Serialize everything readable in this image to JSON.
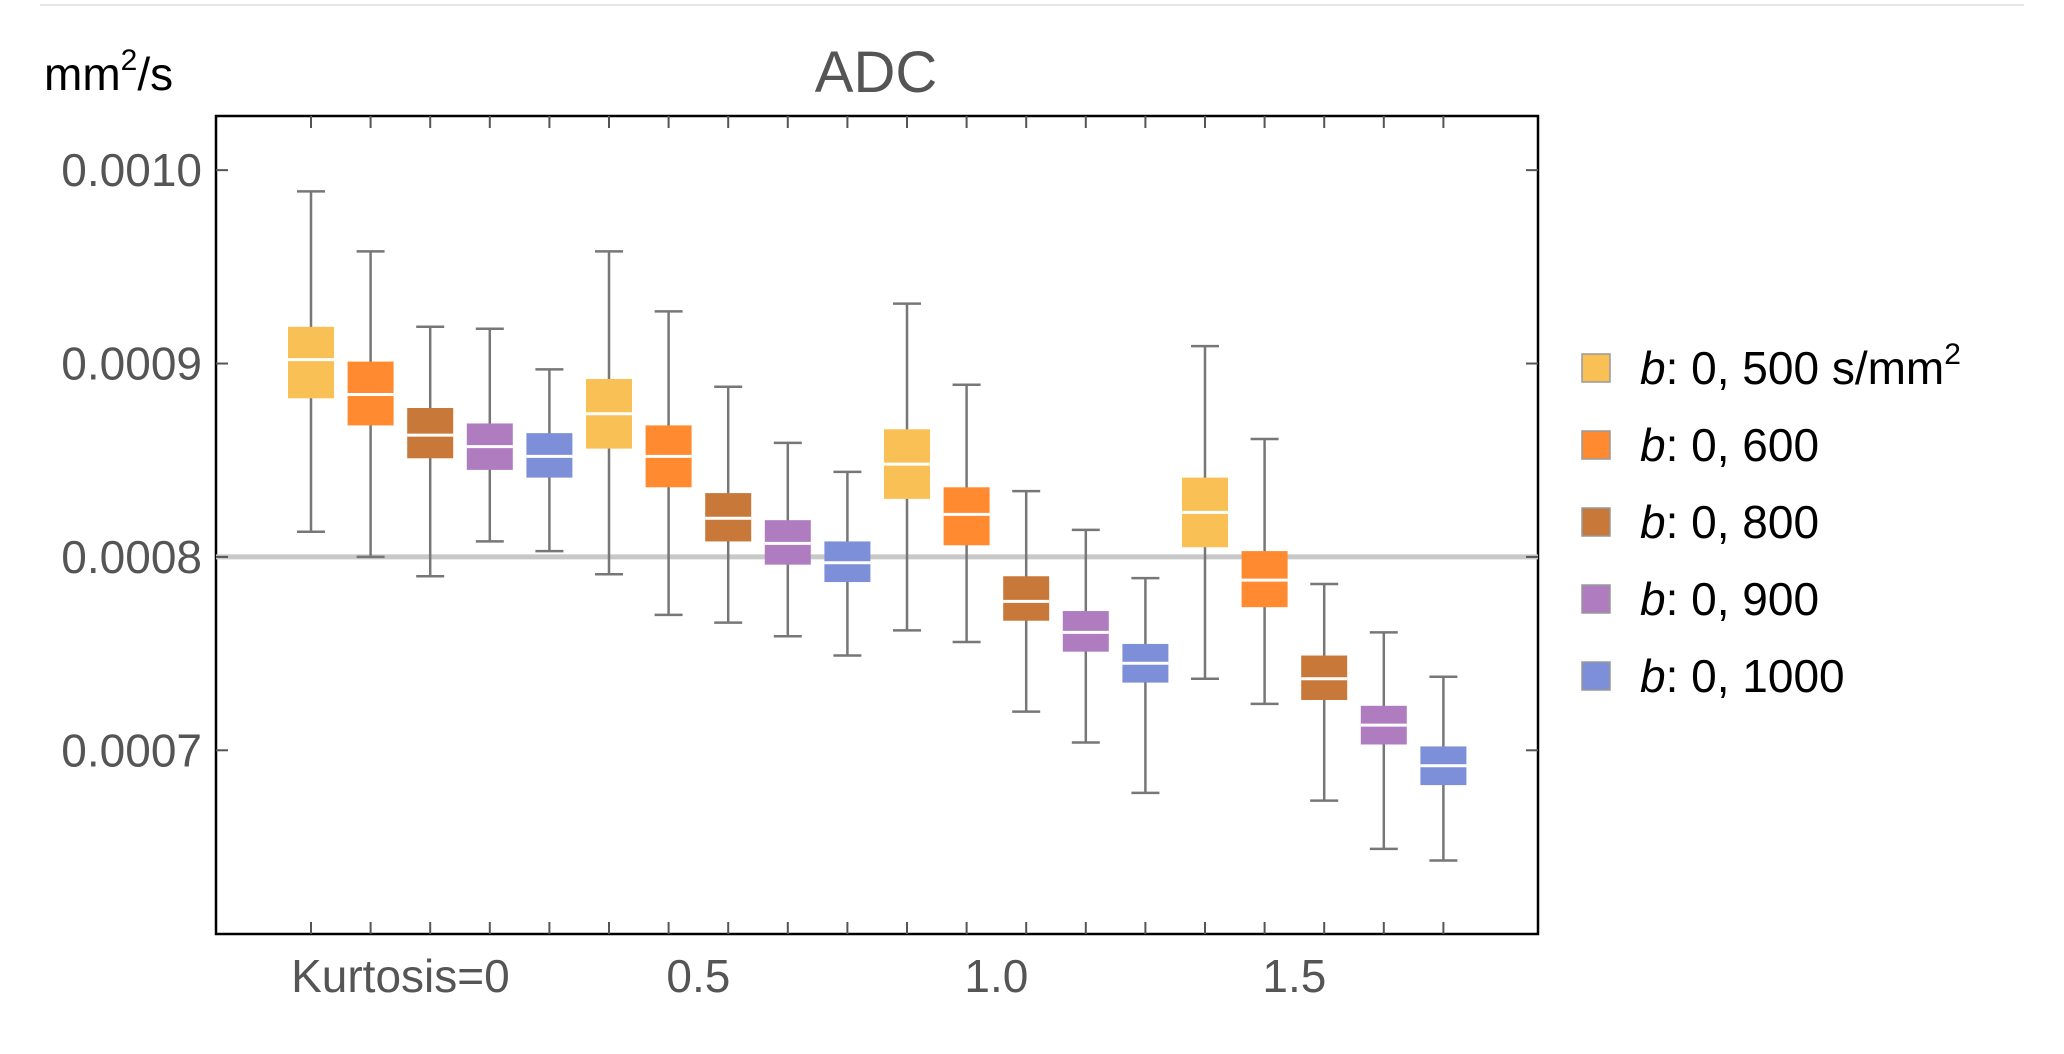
{
  "chart_data": {
    "type": "box",
    "title": "ADC",
    "unit_label": {
      "base": "mm",
      "sup": "2",
      "rest": "/s"
    },
    "ylim": [
      0.000605,
      0.001028
    ],
    "yticks": [
      {
        "value": 0.0007,
        "label": "0.0007"
      },
      {
        "value": 0.0008,
        "label": "0.0008"
      },
      {
        "value": 0.0009,
        "label": "0.0009"
      },
      {
        "value": 0.001,
        "label": "0.0010"
      }
    ],
    "reference_line": 0.0008,
    "groups": [
      {
        "label": "Kurtosis=0",
        "kurtosis": 0
      },
      {
        "label": "0.5",
        "kurtosis": 0.5
      },
      {
        "label": "1.0",
        "kurtosis": 1.0
      },
      {
        "label": "1.5",
        "kurtosis": 1.5
      }
    ],
    "series": [
      {
        "name": "b: 0, 500 s/mm2",
        "legend": {
          "b": "b",
          "rest": ": 0, 500 s/mm",
          "sup": "2"
        },
        "color": "#F9C056",
        "boxes": [
          {
            "min": 0.000813,
            "q1": 0.000882,
            "median": 0.000902,
            "q3": 0.000919,
            "max": 0.000989
          },
          {
            "min": 0.000791,
            "q1": 0.000856,
            "median": 0.000874,
            "q3": 0.000892,
            "max": 0.000958
          },
          {
            "min": 0.000762,
            "q1": 0.00083,
            "median": 0.000848,
            "q3": 0.000866,
            "max": 0.000931
          },
          {
            "min": 0.000737,
            "q1": 0.000805,
            "median": 0.000823,
            "q3": 0.000841,
            "max": 0.000909
          }
        ]
      },
      {
        "name": "b: 0, 600",
        "legend": {
          "b": "b",
          "rest": ": 0, 600",
          "sup": ""
        },
        "color": "#FF8A30",
        "boxes": [
          {
            "min": 0.0008,
            "q1": 0.000868,
            "median": 0.000884,
            "q3": 0.000901,
            "max": 0.000958
          },
          {
            "min": 0.00077,
            "q1": 0.000836,
            "median": 0.000852,
            "q3": 0.000868,
            "max": 0.000927
          },
          {
            "min": 0.000756,
            "q1": 0.000806,
            "median": 0.000822,
            "q3": 0.000836,
            "max": 0.000889
          },
          {
            "min": 0.000724,
            "q1": 0.000774,
            "median": 0.000788,
            "q3": 0.000803,
            "max": 0.000861
          }
        ]
      },
      {
        "name": "b: 0, 800",
        "legend": {
          "b": "b",
          "rest": ": 0, 800",
          "sup": ""
        },
        "color": "#C8793A",
        "boxes": [
          {
            "min": 0.00079,
            "q1": 0.000851,
            "median": 0.000863,
            "q3": 0.000877,
            "max": 0.000919
          },
          {
            "min": 0.000766,
            "q1": 0.000808,
            "median": 0.00082,
            "q3": 0.000833,
            "max": 0.000888
          },
          {
            "min": 0.00072,
            "q1": 0.000767,
            "median": 0.000777,
            "q3": 0.00079,
            "max": 0.000834
          },
          {
            "min": 0.000674,
            "q1": 0.000726,
            "median": 0.000737,
            "q3": 0.000749,
            "max": 0.000786
          }
        ]
      },
      {
        "name": "b: 0, 900",
        "legend": {
          "b": "b",
          "rest": ": 0, 900",
          "sup": ""
        },
        "color": "#B07CC0",
        "boxes": [
          {
            "min": 0.000808,
            "q1": 0.000845,
            "median": 0.000857,
            "q3": 0.000869,
            "max": 0.000918
          },
          {
            "min": 0.000759,
            "q1": 0.000796,
            "median": 0.000807,
            "q3": 0.000819,
            "max": 0.000859
          },
          {
            "min": 0.000704,
            "q1": 0.000751,
            "median": 0.000761,
            "q3": 0.000772,
            "max": 0.000814
          },
          {
            "min": 0.000649,
            "q1": 0.000703,
            "median": 0.000713,
            "q3": 0.000723,
            "max": 0.000761
          }
        ]
      },
      {
        "name": "b: 0, 1000",
        "legend": {
          "b": "b",
          "rest": ": 0, 1000",
          "sup": ""
        },
        "color": "#7D8FD8",
        "boxes": [
          {
            "min": 0.000803,
            "q1": 0.000841,
            "median": 0.000852,
            "q3": 0.000864,
            "max": 0.000897
          },
          {
            "min": 0.000749,
            "q1": 0.000787,
            "median": 0.000797,
            "q3": 0.000808,
            "max": 0.000844
          },
          {
            "min": 0.000678,
            "q1": 0.000735,
            "median": 0.000745,
            "q3": 0.000755,
            "max": 0.000789
          },
          {
            "min": 0.000643,
            "q1": 0.000682,
            "median": 0.000692,
            "q3": 0.000702,
            "max": 0.000738
          }
        ]
      }
    ]
  }
}
